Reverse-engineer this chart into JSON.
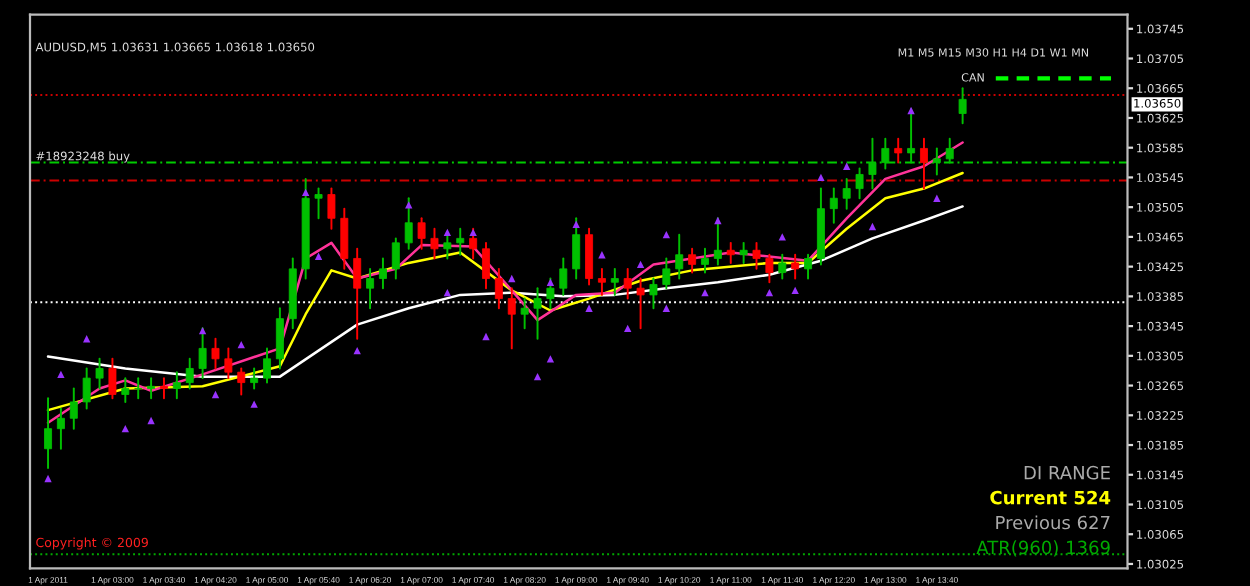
{
  "chart_data": {
    "type": "candlestick",
    "title": "AUDUSD,M5 1.03631 1.03665 1.03618 1.03650",
    "x": [
      "2011-04-01T02:10",
      "2011-04-01T02:20",
      "2011-04-01T02:30",
      "2011-04-01T02:40",
      "2011-04-01T02:50",
      "2011-04-01T03:00",
      "2011-04-01T03:10",
      "2011-04-01T03:20",
      "2011-04-01T03:30",
      "2011-04-01T03:40",
      "2011-04-01T03:50",
      "2011-04-01T04:00",
      "2011-04-01T04:10",
      "2011-04-01T04:20",
      "2011-04-01T04:30",
      "2011-04-01T04:40",
      "2011-04-01T04:50",
      "2011-04-01T05:00",
      "2011-04-01T05:10",
      "2011-04-01T05:20",
      "2011-04-01T05:30",
      "2011-04-01T05:40",
      "2011-04-01T05:50",
      "2011-04-01T06:00",
      "2011-04-01T06:10",
      "2011-04-01T06:20",
      "2011-04-01T06:30",
      "2011-04-01T06:40",
      "2011-04-01T06:50",
      "2011-04-01T07:00",
      "2011-04-01T07:10",
      "2011-04-01T07:20",
      "2011-04-01T07:30",
      "2011-04-01T07:40",
      "2011-04-01T07:50",
      "2011-04-01T08:00",
      "2011-04-01T08:10",
      "2011-04-01T08:20",
      "2011-04-01T08:30",
      "2011-04-01T08:40",
      "2011-04-01T08:50",
      "2011-04-01T09:00",
      "2011-04-01T09:10",
      "2011-04-01T09:20",
      "2011-04-01T09:30",
      "2011-04-01T09:40",
      "2011-04-01T09:50",
      "2011-04-01T10:00",
      "2011-04-01T10:10",
      "2011-04-01T10:20",
      "2011-04-01T10:30",
      "2011-04-01T10:40",
      "2011-04-01T10:50",
      "2011-04-01T11:00",
      "2011-04-01T11:10",
      "2011-04-01T11:20",
      "2011-04-01T11:30",
      "2011-04-01T11:40",
      "2011-04-01T11:50",
      "2011-04-01T12:00",
      "2011-04-01T12:10",
      "2011-04-01T12:20",
      "2011-04-01T12:30",
      "2011-04-01T12:40",
      "2011-04-01T12:50",
      "2011-04-01T13:00",
      "2011-04-01T13:10",
      "2011-04-01T13:20",
      "2011-04-01T13:30",
      "2011-04-01T13:40",
      "2011-04-01T13:50",
      "2011-04-01T14:00"
    ],
    "ohlc": [
      [
        1.0318,
        1.03248,
        1.03154,
        1.03207
      ],
      [
        1.03207,
        1.03234,
        1.0318,
        1.03221
      ],
      [
        1.03221,
        1.03261,
        1.03207,
        1.03243
      ],
      [
        1.03243,
        1.03288,
        1.03234,
        1.03275
      ],
      [
        1.03275,
        1.03301,
        1.03261,
        1.03288
      ],
      [
        1.03288,
        1.03301,
        1.03248,
        1.03253
      ],
      [
        1.03253,
        1.03275,
        1.03243,
        1.03261
      ],
      [
        1.03261,
        1.03275,
        1.03248,
        1.03261
      ],
      [
        1.03261,
        1.03275,
        1.03248,
        1.03264
      ],
      [
        1.03264,
        1.03275,
        1.03248,
        1.03261
      ],
      [
        1.03261,
        1.03283,
        1.03248,
        1.03269
      ],
      [
        1.03269,
        1.03301,
        1.03261,
        1.03288
      ],
      [
        1.03288,
        1.03342,
        1.03275,
        1.03315
      ],
      [
        1.03315,
        1.03328,
        1.03288,
        1.03301
      ],
      [
        1.03301,
        1.03315,
        1.03275,
        1.03283
      ],
      [
        1.03283,
        1.03288,
        1.03253,
        1.03269
      ],
      [
        1.03269,
        1.03288,
        1.03261,
        1.03275
      ],
      [
        1.03275,
        1.03315,
        1.03269,
        1.03301
      ],
      [
        1.03301,
        1.03369,
        1.03288,
        1.03355
      ],
      [
        1.03355,
        1.03436,
        1.03342,
        1.03422
      ],
      [
        1.03422,
        1.03543,
        1.03409,
        1.03517
      ],
      [
        1.03517,
        1.0353,
        1.0349,
        1.03522
      ],
      [
        1.03522,
        1.0353,
        1.03476,
        1.0349
      ],
      [
        1.0349,
        1.03503,
        1.03422,
        1.03436
      ],
      [
        1.03436,
        1.03449,
        1.03328,
        1.03396
      ],
      [
        1.03396,
        1.03422,
        1.03369,
        1.03409
      ],
      [
        1.03409,
        1.03436,
        1.03396,
        1.03422
      ],
      [
        1.03422,
        1.03463,
        1.03409,
        1.03457
      ],
      [
        1.03457,
        1.03517,
        1.03449,
        1.03484
      ],
      [
        1.03484,
        1.0349,
        1.03449,
        1.03463
      ],
      [
        1.03463,
        1.03476,
        1.03436,
        1.03449
      ],
      [
        1.03449,
        1.03468,
        1.03436,
        1.03457
      ],
      [
        1.03457,
        1.03476,
        1.03441,
        1.03463
      ],
      [
        1.03463,
        1.03476,
        1.03436,
        1.03449
      ],
      [
        1.03449,
        1.03457,
        1.03396,
        1.03409
      ],
      [
        1.03409,
        1.03422,
        1.03369,
        1.03382
      ],
      [
        1.03382,
        1.03396,
        1.03315,
        1.03361
      ],
      [
        1.03361,
        1.03382,
        1.03342,
        1.03369
      ],
      [
        1.03369,
        1.03396,
        1.03328,
        1.03382
      ],
      [
        1.03382,
        1.03409,
        1.03369,
        1.03396
      ],
      [
        1.03396,
        1.03436,
        1.03387,
        1.03422
      ],
      [
        1.03422,
        1.0349,
        1.03409,
        1.03468
      ],
      [
        1.03468,
        1.03476,
        1.03401,
        1.03409
      ],
      [
        1.03409,
        1.03422,
        1.03387,
        1.03404
      ],
      [
        1.03404,
        1.03422,
        1.03387,
        1.03409
      ],
      [
        1.03409,
        1.03422,
        1.03382,
        1.03396
      ],
      [
        1.03396,
        1.03409,
        1.03342,
        1.03387
      ],
      [
        1.03387,
        1.03409,
        1.03369,
        1.03401
      ],
      [
        1.03401,
        1.03436,
        1.03396,
        1.03422
      ],
      [
        1.03422,
        1.03468,
        1.03409,
        1.03441
      ],
      [
        1.03441,
        1.03449,
        1.03417,
        1.03428
      ],
      [
        1.03428,
        1.03449,
        1.03417,
        1.03436
      ],
      [
        1.03436,
        1.0349,
        1.03428,
        1.03447
      ],
      [
        1.03447,
        1.03457,
        1.0343,
        1.03441
      ],
      [
        1.03441,
        1.03457,
        1.0343,
        1.03447
      ],
      [
        1.03447,
        1.03457,
        1.03422,
        1.03436
      ],
      [
        1.03436,
        1.03441,
        1.03404,
        1.03417
      ],
      [
        1.03417,
        1.03441,
        1.03409,
        1.0343
      ],
      [
        1.0343,
        1.03441,
        1.03409,
        1.03422
      ],
      [
        1.03422,
        1.03441,
        1.03409,
        1.03436
      ],
      [
        1.03436,
        1.0353,
        1.03428,
        1.03503
      ],
      [
        1.03503,
        1.0353,
        1.03484,
        1.03517
      ],
      [
        1.03517,
        1.03543,
        1.03503,
        1.0353
      ],
      [
        1.0353,
        1.03557,
        1.03517,
        1.03549
      ],
      [
        1.03549,
        1.03597,
        1.0353,
        1.03565
      ],
      [
        1.03565,
        1.03597,
        1.03557,
        1.03584
      ],
      [
        1.03584,
        1.03597,
        1.03565,
        1.03578
      ],
      [
        1.03578,
        1.03637,
        1.03565,
        1.03584
      ],
      [
        1.03584,
        1.03597,
        1.0353,
        1.03565
      ],
      [
        1.03565,
        1.03584,
        1.03549,
        1.0357
      ],
      [
        1.0357,
        1.03597,
        1.03565,
        1.03584
      ],
      [
        1.03631,
        1.03665,
        1.03618,
        1.0365
      ]
    ],
    "series": [
      {
        "type": "line",
        "color": "#ffffff",
        "x": [
          "2011-04-01T02:10",
          "2011-04-01T03:10",
          "2011-04-01T04:10",
          "2011-04-01T05:10",
          "2011-04-01T05:40",
          "2011-04-01T06:10",
          "2011-04-01T06:50",
          "2011-04-01T07:30",
          "2011-04-01T08:10",
          "2011-04-01T08:50",
          "2011-04-01T09:30",
          "2011-04-01T10:10",
          "2011-04-01T10:50",
          "2011-04-01T11:30",
          "2011-04-01T12:10",
          "2011-04-01T12:50",
          "2011-04-01T13:30",
          "2011-04-01T14:00"
        ],
        "values": [
          1.03304,
          1.03288,
          1.03277,
          1.03277,
          1.03312,
          1.03347,
          1.03369,
          1.03387,
          1.0339,
          1.03385,
          1.03387,
          1.03396,
          1.03404,
          1.03414,
          1.03433,
          1.03463,
          1.03487,
          1.03506
        ]
      },
      {
        "type": "line",
        "color": "#ffff00",
        "x": [
          "2011-04-01T02:10",
          "2011-04-01T03:10",
          "2011-04-01T04:10",
          "2011-04-01T05:10",
          "2011-04-01T05:30",
          "2011-04-01T05:50",
          "2011-04-01T06:10",
          "2011-04-01T06:50",
          "2011-04-01T07:30",
          "2011-04-01T08:10",
          "2011-04-01T08:40",
          "2011-04-01T09:10",
          "2011-04-01T09:50",
          "2011-04-01T10:30",
          "2011-04-01T11:30",
          "2011-04-01T12:00",
          "2011-04-01T12:30",
          "2011-04-01T13:00",
          "2011-04-01T13:30",
          "2011-04-01T14:00"
        ],
        "values": [
          1.03232,
          1.03261,
          1.03264,
          1.03291,
          1.03361,
          1.0342,
          1.03409,
          1.0343,
          1.03444,
          1.03393,
          1.03366,
          1.03382,
          1.03406,
          1.0342,
          1.0343,
          1.0343,
          1.03476,
          1.03517,
          1.0353,
          1.03551
        ]
      },
      {
        "type": "line",
        "color": "#ff3399",
        "x": [
          "2011-04-01T02:10",
          "2011-04-01T02:50",
          "2011-04-01T03:10",
          "2011-04-01T03:30",
          "2011-04-01T04:10",
          "2011-04-01T05:10",
          "2011-04-01T05:30",
          "2011-04-01T05:50",
          "2011-04-01T06:10",
          "2011-04-01T06:40",
          "2011-04-01T07:00",
          "2011-04-01T07:40",
          "2011-04-01T08:10",
          "2011-04-01T08:30",
          "2011-04-01T09:00",
          "2011-04-01T09:30",
          "2011-04-01T10:00",
          "2011-04-01T11:00",
          "2011-04-01T12:00",
          "2011-04-01T12:30",
          "2011-04-01T13:00",
          "2011-04-01T13:30",
          "2011-04-01T14:00"
        ],
        "values": [
          1.03215,
          1.03261,
          1.03272,
          1.03258,
          1.0328,
          1.03315,
          1.03436,
          1.03457,
          1.03409,
          1.03422,
          1.03454,
          1.03452,
          1.03393,
          1.03353,
          1.03387,
          1.0339,
          1.03428,
          1.03444,
          1.03433,
          1.0349,
          1.03543,
          1.0356,
          1.03592
        ]
      },
      {
        "type": "scatter",
        "color": "#9933ff",
        "marker": "triangle",
        "x": [
          "2011-04-01T02:20",
          "2011-04-01T02:40",
          "2011-04-01T04:10",
          "2011-04-01T04:40",
          "2011-04-01T05:30",
          "2011-04-01T06:50",
          "2011-04-01T07:20",
          "2011-04-01T07:40",
          "2011-04-01T08:10",
          "2011-04-01T08:40",
          "2011-04-01T09:00",
          "2011-04-01T09:20",
          "2011-04-01T09:50",
          "2011-04-01T10:10",
          "2011-04-01T10:50",
          "2011-04-01T11:40",
          "2011-04-01T12:10",
          "2011-04-01T12:30",
          "2011-04-01T13:20"
        ],
        "values": [
          1.0328,
          1.03328,
          1.03339,
          1.0332,
          1.03525,
          1.03508,
          1.03471,
          1.03471,
          1.03409,
          1.03404,
          1.03482,
          1.03441,
          1.03428,
          1.03468,
          1.03487,
          1.03465,
          1.03545,
          1.0356,
          1.03635
        ]
      },
      {
        "type": "scatter",
        "color": "#9933ff",
        "marker": "triangle",
        "x": [
          "2011-04-01T02:10",
          "2011-04-01T03:10",
          "2011-04-01T03:30",
          "2011-04-01T04:20",
          "2011-04-01T04:50",
          "2011-04-01T05:40",
          "2011-04-01T06:10",
          "2011-04-01T07:20",
          "2011-04-01T07:50",
          "2011-04-01T08:30",
          "2011-04-01T08:40",
          "2011-04-01T09:10",
          "2011-04-01T09:40",
          "2011-04-01T10:10",
          "2011-04-01T10:40",
          "2011-04-01T11:30",
          "2011-04-01T11:50",
          "2011-04-01T12:50",
          "2011-04-01T13:40"
        ],
        "values": [
          1.0314,
          1.03207,
          1.03218,
          1.03253,
          1.0324,
          1.03439,
          1.03312,
          1.0339,
          1.03331,
          1.03277,
          1.03301,
          1.03369,
          1.03342,
          1.03369,
          1.0339,
          1.0339,
          1.03393,
          1.03479,
          1.03517
        ]
      }
    ],
    "xlim": [
      "2011-04-01T01:56",
      "2011-04-01T16:08"
    ],
    "ylim": [
      1.03019,
      1.03764
    ],
    "xticks": [
      {
        "value": "2011-04-01T02:10",
        "label": "1 Apr 2011"
      },
      {
        "value": "2011-04-01T03:00",
        "label": "1 Apr 03:00"
      },
      {
        "value": "2011-04-01T03:40",
        "label": "1 Apr 03:40"
      },
      {
        "value": "2011-04-01T04:20",
        "label": "1 Apr 04:20"
      },
      {
        "value": "2011-04-01T05:00",
        "label": "1 Apr 05:00"
      },
      {
        "value": "2011-04-01T05:40",
        "label": "1 Apr 05:40"
      },
      {
        "value": "2011-04-01T06:20",
        "label": "1 Apr 06:20"
      },
      {
        "value": "2011-04-01T07:00",
        "label": "1 Apr 07:00"
      },
      {
        "value": "2011-04-01T07:40",
        "label": "1 Apr 07:40"
      },
      {
        "value": "2011-04-01T08:20",
        "label": "1 Apr 08:20"
      },
      {
        "value": "2011-04-01T09:00",
        "label": "1 Apr 09:00"
      },
      {
        "value": "2011-04-01T09:40",
        "label": "1 Apr 09:40"
      },
      {
        "value": "2011-04-01T10:20",
        "label": "1 Apr 10:20"
      },
      {
        "value": "2011-04-01T11:00",
        "label": "1 Apr 11:00"
      },
      {
        "value": "2011-04-01T11:40",
        "label": "1 Apr 11:40"
      },
      {
        "value": "2011-04-01T12:20",
        "label": "1 Apr 12:20"
      },
      {
        "value": "2011-04-01T13:00",
        "label": "1 Apr 13:00"
      },
      {
        "value": "2011-04-01T13:40",
        "label": "1 Apr 13:40"
      }
    ],
    "yticks": [
      1.03745,
      1.03705,
      1.03665,
      1.03625,
      1.03585,
      1.03545,
      1.03505,
      1.03465,
      1.03425,
      1.03385,
      1.03345,
      1.03305,
      1.03265,
      1.03225,
      1.03185,
      1.03145,
      1.03105,
      1.03065,
      1.03025
    ],
    "ref_lines": [
      {
        "axis": "y",
        "value": 1.03656,
        "color": "#cc0000",
        "line_style": "dotted"
      },
      {
        "axis": "y",
        "value": 1.03565,
        "color": "#00cc00",
        "line_style": "dashed",
        "label": "#18923248 buy"
      },
      {
        "axis": "y",
        "value": 1.03541,
        "color": "#cc0000",
        "line_style": "dashed"
      },
      {
        "axis": "y",
        "value": 1.03377,
        "color": "#ffffff",
        "line_style": "dotted"
      },
      {
        "axis": "y",
        "value": 1.03038,
        "color": "#00aa00",
        "line_style": "dotted"
      }
    ],
    "annotations": [
      "M1 M5 M15 M30 H1 H4 D1 W1 MN",
      "CAN",
      "DI RANGE",
      "Current 524",
      "Previous 627",
      "ATR(960) 1369",
      "Copyright © 2009",
      "1.03650"
    ],
    "grid": false,
    "legend": false
  }
}
